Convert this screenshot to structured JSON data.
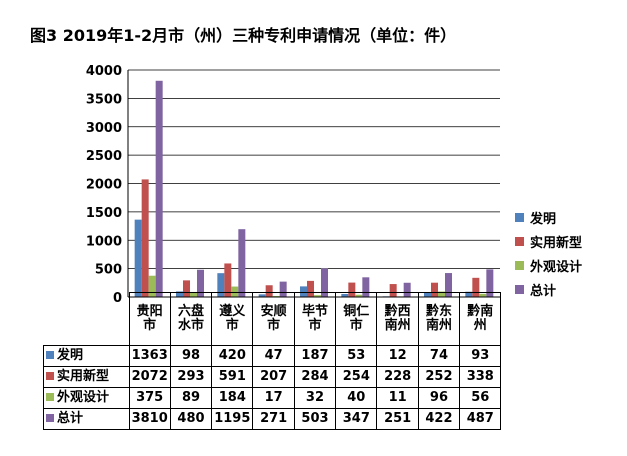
{
  "title": "图3 2019年1-2月市（州）三种专利申请情况（单位：件）",
  "chart_data": {
    "type": "bar",
    "title": "图3 2019年1-2月市（州）三种专利申请情况（单位：件）",
    "categories": [
      "贵阳市",
      "六盘水市",
      "遵义市",
      "安顺市",
      "毕节市",
      "铜仁市",
      "黔西南州",
      "黔东南州",
      "黔南州"
    ],
    "series": [
      {
        "name": "发明",
        "color": "#4f81bd",
        "values": [
          1363,
          98,
          420,
          47,
          187,
          53,
          12,
          74,
          93
        ]
      },
      {
        "name": "实用新型",
        "color": "#c0504d",
        "values": [
          2072,
          293,
          591,
          207,
          284,
          254,
          228,
          252,
          338
        ]
      },
      {
        "name": "外观设计",
        "color": "#9bbb59",
        "values": [
          375,
          89,
          184,
          17,
          32,
          40,
          11,
          96,
          56
        ]
      },
      {
        "name": "总计",
        "color": "#8064a2",
        "values": [
          3810,
          480,
          1195,
          271,
          503,
          347,
          251,
          422,
          487
        ]
      }
    ],
    "yticks": [
      "0",
      "500",
      "1000",
      "1500",
      "2000",
      "2500",
      "3000",
      "3500",
      "4000"
    ],
    "ylim": [
      0,
      4000
    ],
    "grid": true,
    "legend": "right",
    "data_table": true
  }
}
